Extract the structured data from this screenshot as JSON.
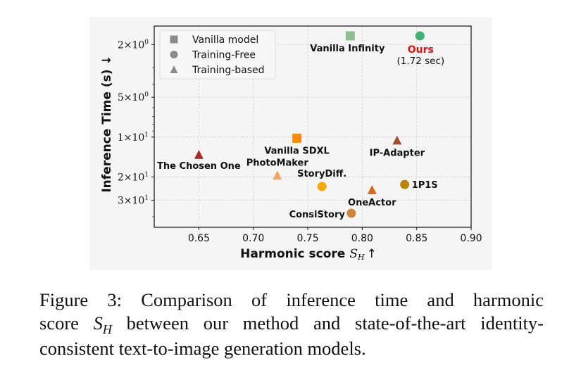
{
  "chart_data": {
    "type": "scatter",
    "xlabel": "Harmonic score",
    "xlabel_math": "S",
    "xlabel_math_sub": "H",
    "xlabel_arrow": "↑",
    "ylabel": "Inference Time (s) ↓",
    "xlim": [
      0.609,
      0.9
    ],
    "ylim": [
      48,
      1.45
    ],
    "yscale": "log",
    "yaxis_inverted": true,
    "grid": true,
    "x_ticks": [
      0.65,
      0.7,
      0.75,
      0.8,
      0.85,
      0.9
    ],
    "x_tick_labels": [
      "0.65",
      "0.70",
      "0.75",
      "0.80",
      "0.85",
      "0.90"
    ],
    "y_ticks": [
      {
        "value": 2,
        "mantissa": "2",
        "base": "10",
        "exp": "0"
      },
      {
        "value": 5,
        "mantissa": "5",
        "base": "10",
        "exp": "0"
      },
      {
        "value": 10,
        "mantissa": "1",
        "base": "10",
        "exp": "1"
      },
      {
        "value": 20,
        "mantissa": "2",
        "base": "10",
        "exp": "1"
      },
      {
        "value": 30,
        "mantissa": "3",
        "base": "10",
        "exp": "1"
      }
    ],
    "y_minor_ticks": [
      3,
      4,
      6,
      7,
      8,
      9,
      40
    ],
    "legend": {
      "placement": "top-left",
      "entries": [
        {
          "label": "Vanilla model",
          "marker": "square"
        },
        {
          "label": "Training-Free",
          "marker": "circle"
        },
        {
          "label": "Training-based",
          "marker": "triangle"
        }
      ],
      "color": "#8c8c8c"
    },
    "points": [
      {
        "name": "Vanilla Infinity",
        "x": 0.789,
        "y": 1.72,
        "marker": "square",
        "color": "#8fbf8f",
        "label_pos": "below",
        "label_color": "#111111"
      },
      {
        "name": "Ours",
        "x": 0.853,
        "y": 1.72,
        "marker": "circle",
        "color": "#3cb371",
        "label_pos": "below",
        "label_color": "#dd1111",
        "annotation": "(1.72 sec)"
      },
      {
        "name": "Vanilla SDXL",
        "x": 0.74,
        "y": 10.2,
        "marker": "square",
        "color": "#ff8c00",
        "label_pos": "below",
        "label_color": "#111111"
      },
      {
        "name": "IP-Adapter",
        "x": 0.832,
        "y": 10.6,
        "marker": "triangle",
        "color": "#a0522d",
        "label_pos": "below",
        "label_color": "#111111"
      },
      {
        "name": "The Chosen One",
        "x": 0.65,
        "y": 13.6,
        "marker": "triangle",
        "color": "#a52a2a",
        "label_pos": "below",
        "label_color": "#111111"
      },
      {
        "name": "PhotoMaker",
        "x": 0.722,
        "y": 19.5,
        "marker": "triangle",
        "color": "#f4a460",
        "label_pos": "above",
        "label_color": "#111111"
      },
      {
        "name": "StoryDiff.",
        "x": 0.763,
        "y": 23.6,
        "marker": "circle",
        "color": "#ffa500",
        "label_pos": "above",
        "label_color": "#111111"
      },
      {
        "name": "1P1S",
        "x": 0.839,
        "y": 22.8,
        "marker": "circle",
        "color": "#b8860b",
        "label_pos": "right",
        "label_color": "#111111"
      },
      {
        "name": "OneActor",
        "x": 0.809,
        "y": 25.1,
        "marker": "triangle",
        "color": "#d2691e",
        "label_pos": "below",
        "label_color": "#111111"
      },
      {
        "name": "ConsiStory",
        "x": 0.79,
        "y": 37.6,
        "marker": "circle",
        "color": "#cd853f",
        "label_pos": "left",
        "label_color": "#111111"
      }
    ]
  },
  "caption": {
    "line1": "Figure 3: Comparison of inference time and harmonic",
    "line2_pre": "score ",
    "line2_math": "S",
    "line2_sub": "H",
    "line2_post": " between our method and state-of-the-art identity-",
    "line3": "consistent text-to-image generation models."
  }
}
